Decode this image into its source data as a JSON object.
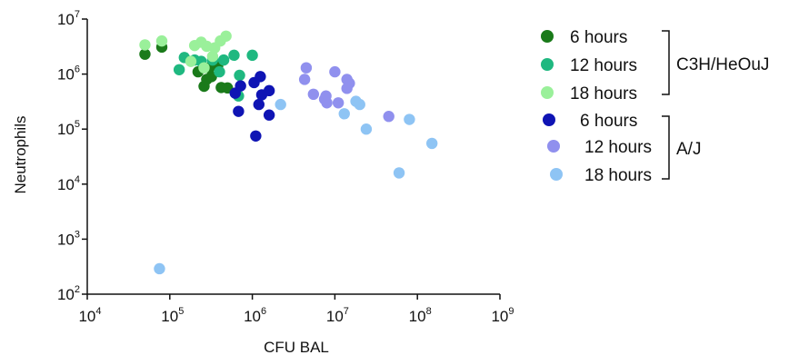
{
  "chart_data": {
    "type": "scatter",
    "xlabel": "CFU BAL",
    "ylabel": "Neutrophils",
    "xscale": "log",
    "yscale": "log",
    "xlim": [
      10000,
      1000000000
    ],
    "ylim": [
      100,
      10000000
    ],
    "x_ticks": [
      {
        "base": "10",
        "exp": "4",
        "value": 10000
      },
      {
        "base": "10",
        "exp": "5",
        "value": 100000
      },
      {
        "base": "10",
        "exp": "6",
        "value": 1000000
      },
      {
        "base": "10",
        "exp": "7",
        "value": 10000000
      },
      {
        "base": "10",
        "exp": "8",
        "value": 100000000
      },
      {
        "base": "10",
        "exp": "9",
        "value": 1000000000
      }
    ],
    "y_ticks": [
      {
        "base": "10",
        "exp": "2",
        "value": 100
      },
      {
        "base": "10",
        "exp": "3",
        "value": 1000
      },
      {
        "base": "10",
        "exp": "4",
        "value": 10000
      },
      {
        "base": "10",
        "exp": "5",
        "value": 100000
      },
      {
        "base": "10",
        "exp": "6",
        "value": 1000000
      },
      {
        "base": "10",
        "exp": "7",
        "value": 10000000
      }
    ],
    "grid": false,
    "legend_position": "right",
    "groups": [
      {
        "label": "C3H/HeOuJ",
        "series_indices": [
          0,
          1,
          2
        ]
      },
      {
        "label": "A/J",
        "series_indices": [
          3,
          4,
          5
        ]
      }
    ],
    "series": [
      {
        "name": "6 hours",
        "color": "#1a7a1a",
        "points": [
          [
            50000,
            2300000
          ],
          [
            80000,
            3100000
          ],
          [
            220000,
            1100000
          ],
          [
            260000,
            600000
          ],
          [
            280000,
            800000
          ],
          [
            320000,
            900000
          ],
          [
            380000,
            1400000
          ],
          [
            420000,
            570000
          ],
          [
            500000,
            560000
          ],
          [
            300000,
            1300000
          ]
        ]
      },
      {
        "name": "12 hours",
        "color": "#1fb880",
        "points": [
          [
            130000,
            1200000
          ],
          [
            150000,
            2000000
          ],
          [
            200000,
            1800000
          ],
          [
            240000,
            1700000
          ],
          [
            330000,
            1800000
          ],
          [
            400000,
            1100000
          ],
          [
            450000,
            1800000
          ],
          [
            600000,
            2200000
          ],
          [
            700000,
            950000
          ],
          [
            680000,
            400000
          ],
          [
            1000000,
            2200000
          ]
        ]
      },
      {
        "name": "18 hours",
        "color": "#9af09a",
        "points": [
          [
            50000,
            3400000
          ],
          [
            80000,
            4000000
          ],
          [
            200000,
            3300000
          ],
          [
            240000,
            3800000
          ],
          [
            280000,
            3200000
          ],
          [
            330000,
            2100000
          ],
          [
            350000,
            3000000
          ],
          [
            410000,
            4000000
          ],
          [
            480000,
            4900000
          ],
          [
            180000,
            1700000
          ],
          [
            260000,
            1300000
          ]
        ]
      },
      {
        "name": "6 hours",
        "color": "#0f14b4",
        "points": [
          [
            620000,
            450000
          ],
          [
            720000,
            610000
          ],
          [
            680000,
            210000
          ],
          [
            1050000,
            700000
          ],
          [
            1250000,
            900000
          ],
          [
            1300000,
            420000
          ],
          [
            1600000,
            500000
          ],
          [
            1200000,
            280000
          ],
          [
            1600000,
            180000
          ],
          [
            1100000,
            75000
          ]
        ]
      },
      {
        "name": "12 hours",
        "color": "#9090ee",
        "points": [
          [
            4500000,
            1300000
          ],
          [
            4300000,
            800000
          ],
          [
            5500000,
            430000
          ],
          [
            7500000,
            350000
          ],
          [
            7800000,
            400000
          ],
          [
            8000000,
            300000
          ],
          [
            10000000,
            1100000
          ],
          [
            11000000,
            300000
          ],
          [
            14000000,
            800000
          ],
          [
            15000000,
            680000
          ],
          [
            14000000,
            550000
          ],
          [
            45000000,
            170000
          ]
        ]
      },
      {
        "name": "18 hours",
        "color": "#8ec4f4",
        "points": [
          [
            2200000,
            280000
          ],
          [
            13000000,
            190000
          ],
          [
            18000000,
            320000
          ],
          [
            20000000,
            280000
          ],
          [
            24000000,
            100000
          ],
          [
            60000000,
            16000
          ],
          [
            80000000,
            150000
          ],
          [
            150000000,
            55000
          ],
          [
            75000,
            290
          ]
        ]
      }
    ]
  }
}
